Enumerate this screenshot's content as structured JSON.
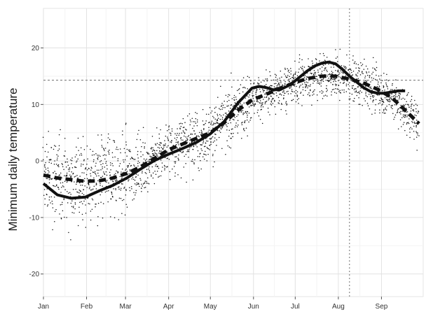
{
  "chart_data": {
    "type": "scatter",
    "title": "",
    "xlabel": "",
    "ylabel": "Minimum daily temperature",
    "x_tick_labels": [
      "Jan",
      "Feb",
      "Mar",
      "Apr",
      "May",
      "Jun",
      "Jul",
      "Aug",
      "Sep"
    ],
    "x_tick_days": [
      0,
      31,
      59,
      90,
      120,
      151,
      181,
      212,
      243
    ],
    "xlim": [
      0,
      273
    ],
    "y_ticks": [
      -20,
      -10,
      0,
      10,
      20
    ],
    "ylim": [
      -24,
      27
    ],
    "grid": true,
    "reference_lines": {
      "horizontal_y": 14.3,
      "vertical_day": 220
    },
    "series": [
      {
        "style": "solid",
        "x_days": [
          0,
          10,
          20,
          30,
          40,
          50,
          60,
          70,
          80,
          90,
          100,
          110,
          120,
          130,
          140,
          150,
          155,
          160,
          165,
          170,
          175,
          180,
          185,
          190,
          195,
          200,
          205,
          210,
          215,
          220,
          225,
          230,
          235,
          240,
          245,
          250,
          255,
          260
        ],
        "values": [
          -4.0,
          -6.0,
          -6.6,
          -6.4,
          -5.3,
          -4.3,
          -3.0,
          -1.4,
          0.1,
          1.2,
          2.2,
          3.3,
          4.8,
          7.0,
          10.3,
          12.9,
          13.2,
          13.0,
          12.6,
          12.6,
          13.2,
          14.0,
          15.0,
          16.0,
          16.8,
          17.3,
          17.5,
          17.2,
          16.2,
          15.0,
          14.0,
          13.0,
          12.3,
          12.0,
          12.0,
          12.2,
          12.4,
          12.4
        ]
      },
      {
        "style": "dashed",
        "x_days": [
          0,
          10,
          20,
          30,
          40,
          50,
          60,
          70,
          80,
          90,
          100,
          110,
          120,
          130,
          140,
          150,
          160,
          170,
          180,
          190,
          200,
          210,
          220,
          230,
          240,
          250,
          260,
          270
        ],
        "values": [
          -2.5,
          -3.0,
          -3.3,
          -3.6,
          -3.5,
          -3.0,
          -2.2,
          -1.0,
          0.5,
          2.0,
          3.0,
          4.0,
          5.0,
          6.8,
          9.0,
          10.8,
          11.8,
          12.8,
          13.8,
          14.6,
          15.0,
          15.0,
          14.5,
          13.8,
          12.7,
          11.3,
          9.0,
          6.6
        ]
      }
    ],
    "scatter_points": {
      "description_of_spread": "daily observations scattered around the trend",
      "day_range": [
        0,
        270
      ]
    }
  }
}
